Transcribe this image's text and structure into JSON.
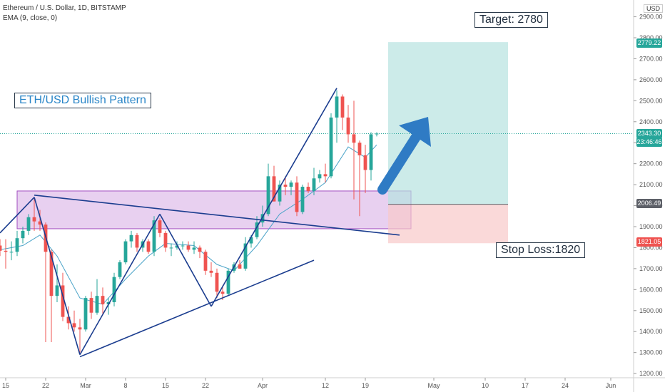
{
  "header": {
    "symbol": "Ethereum / U.S. Dollar, 1D, BITSTAMP",
    "indicator": "EMA (9, close, 0)"
  },
  "axis": {
    "currency": "USD"
  },
  "annotations": {
    "pattern_label": "ETH/USD Bullish Pattern",
    "target_label": "Target: 2780",
    "stop_label": "Stop Loss:1820"
  },
  "price_tags": {
    "target": {
      "value": "2779.22",
      "color": "#26a69a"
    },
    "current": {
      "value": "2343.30",
      "sub": "23:46:46",
      "color": "#26a69a"
    },
    "entry": {
      "value": "2006.49",
      "color": "#5d6068"
    },
    "stop": {
      "value": "1821.05",
      "color": "#ef5350"
    }
  },
  "colors": {
    "up": "#26a69a",
    "down": "#ef5350",
    "ema": "#4aa3c8",
    "trend": "#1b3d8f",
    "zone": "#d8b0e6",
    "target_zone": "#b7e3df",
    "stop_zone": "#f8c9c9",
    "arrow": "#2f7bc4"
  },
  "chart_data": {
    "type": "candlestick",
    "ylim": [
      1180,
      2980
    ],
    "y_ticks": [
      1200,
      1300,
      1400,
      1500,
      1600,
      1700,
      1800,
      1900,
      2000,
      2100,
      2200,
      2300,
      2400,
      2500,
      2600,
      2700,
      2800,
      2900
    ],
    "y_tick_labels": [
      "1200.00",
      "1300.00",
      "1400.00",
      "1500.00",
      "1600.00",
      "1700.00",
      "1800.00",
      "1900.00",
      "2000.00",
      "2100.00",
      "2200.00",
      "2300.00",
      "2400.00",
      "2500.00",
      "2600.00",
      "2700.00",
      "2800.00",
      "2900.00"
    ],
    "x_start": "2021-02-14",
    "x_end": "2021-06-05",
    "x_ticks": [
      {
        "date": "2021-02-15",
        "label": "15"
      },
      {
        "date": "2021-02-22",
        "label": "22"
      },
      {
        "date": "2021-03-01",
        "label": "Mar"
      },
      {
        "date": "2021-03-08",
        "label": "8"
      },
      {
        "date": "2021-03-15",
        "label": "15"
      },
      {
        "date": "2021-03-22",
        "label": "22"
      },
      {
        "date": "2021-04-01",
        "label": "Apr"
      },
      {
        "date": "2021-04-12",
        "label": "12"
      },
      {
        "date": "2021-04-19",
        "label": "19"
      },
      {
        "date": "2021-05-01",
        "label": "May"
      },
      {
        "date": "2021-05-10",
        "label": "10"
      },
      {
        "date": "2021-05-17",
        "label": "17"
      },
      {
        "date": "2021-05-24",
        "label": "24"
      },
      {
        "date": "2021-06-01",
        "label": "Jun"
      }
    ],
    "candles": [
      {
        "d": "2021-02-14",
        "o": 1810,
        "h": 1840,
        "l": 1760,
        "c": 1785
      },
      {
        "d": "2021-02-15",
        "o": 1785,
        "h": 1840,
        "l": 1700,
        "c": 1780
      },
      {
        "d": "2021-02-16",
        "o": 1780,
        "h": 1830,
        "l": 1740,
        "c": 1780
      },
      {
        "d": "2021-02-17",
        "o": 1780,
        "h": 1880,
        "l": 1760,
        "c": 1845
      },
      {
        "d": "2021-02-18",
        "o": 1845,
        "h": 1900,
        "l": 1820,
        "c": 1880
      },
      {
        "d": "2021-02-19",
        "o": 1880,
        "h": 1960,
        "l": 1860,
        "c": 1945
      },
      {
        "d": "2021-02-20",
        "o": 1945,
        "h": 2040,
        "l": 1880,
        "c": 1925
      },
      {
        "d": "2021-02-21",
        "o": 1925,
        "h": 1980,
        "l": 1880,
        "c": 1910
      },
      {
        "d": "2021-02-22",
        "o": 1910,
        "h": 1920,
        "l": 1350,
        "c": 1780
      },
      {
        "d": "2021-02-23",
        "o": 1780,
        "h": 1790,
        "l": 1350,
        "c": 1570
      },
      {
        "d": "2021-02-24",
        "o": 1570,
        "h": 1720,
        "l": 1540,
        "c": 1620
      },
      {
        "d": "2021-02-25",
        "o": 1620,
        "h": 1680,
        "l": 1450,
        "c": 1470
      },
      {
        "d": "2021-02-26",
        "o": 1470,
        "h": 1520,
        "l": 1410,
        "c": 1440
      },
      {
        "d": "2021-02-27",
        "o": 1440,
        "h": 1500,
        "l": 1400,
        "c": 1420
      },
      {
        "d": "2021-02-28",
        "o": 1420,
        "h": 1460,
        "l": 1300,
        "c": 1410
      },
      {
        "d": "2021-03-01",
        "o": 1410,
        "h": 1570,
        "l": 1400,
        "c": 1560
      },
      {
        "d": "2021-03-02",
        "o": 1560,
        "h": 1590,
        "l": 1460,
        "c": 1490
      },
      {
        "d": "2021-03-03",
        "o": 1490,
        "h": 1650,
        "l": 1480,
        "c": 1570
      },
      {
        "d": "2021-03-04",
        "o": 1570,
        "h": 1610,
        "l": 1480,
        "c": 1530
      },
      {
        "d": "2021-03-05",
        "o": 1530,
        "h": 1560,
        "l": 1480,
        "c": 1540
      },
      {
        "d": "2021-03-06",
        "o": 1540,
        "h": 1680,
        "l": 1520,
        "c": 1660
      },
      {
        "d": "2021-03-07",
        "o": 1660,
        "h": 1740,
        "l": 1650,
        "c": 1730
      },
      {
        "d": "2021-03-08",
        "o": 1730,
        "h": 1840,
        "l": 1720,
        "c": 1830
      },
      {
        "d": "2021-03-09",
        "o": 1830,
        "h": 1880,
        "l": 1800,
        "c": 1860
      },
      {
        "d": "2021-03-10",
        "o": 1860,
        "h": 1870,
        "l": 1780,
        "c": 1800
      },
      {
        "d": "2021-03-11",
        "o": 1800,
        "h": 1840,
        "l": 1780,
        "c": 1830
      },
      {
        "d": "2021-03-12",
        "o": 1830,
        "h": 1840,
        "l": 1770,
        "c": 1780
      },
      {
        "d": "2021-03-13",
        "o": 1780,
        "h": 1950,
        "l": 1760,
        "c": 1930
      },
      {
        "d": "2021-03-14",
        "o": 1930,
        "h": 1940,
        "l": 1850,
        "c": 1870
      },
      {
        "d": "2021-03-15",
        "o": 1870,
        "h": 1880,
        "l": 1780,
        "c": 1800
      },
      {
        "d": "2021-03-16",
        "o": 1800,
        "h": 1820,
        "l": 1760,
        "c": 1800
      },
      {
        "d": "2021-03-17",
        "o": 1800,
        "h": 1830,
        "l": 1790,
        "c": 1810
      },
      {
        "d": "2021-03-18",
        "o": 1810,
        "h": 1830,
        "l": 1790,
        "c": 1810
      },
      {
        "d": "2021-03-19",
        "o": 1810,
        "h": 1830,
        "l": 1780,
        "c": 1790
      },
      {
        "d": "2021-03-20",
        "o": 1790,
        "h": 1830,
        "l": 1770,
        "c": 1800
      },
      {
        "d": "2021-03-21",
        "o": 1800,
        "h": 1810,
        "l": 1750,
        "c": 1780
      },
      {
        "d": "2021-03-22",
        "o": 1780,
        "h": 1790,
        "l": 1670,
        "c": 1690
      },
      {
        "d": "2021-03-23",
        "o": 1690,
        "h": 1730,
        "l": 1660,
        "c": 1680
      },
      {
        "d": "2021-03-24",
        "o": 1680,
        "h": 1700,
        "l": 1560,
        "c": 1590
      },
      {
        "d": "2021-03-25",
        "o": 1590,
        "h": 1620,
        "l": 1550,
        "c": 1580
      },
      {
        "d": "2021-03-26",
        "o": 1580,
        "h": 1700,
        "l": 1570,
        "c": 1690
      },
      {
        "d": "2021-03-27",
        "o": 1690,
        "h": 1730,
        "l": 1680,
        "c": 1720
      },
      {
        "d": "2021-03-28",
        "o": 1720,
        "h": 1740,
        "l": 1700,
        "c": 1700
      },
      {
        "d": "2021-03-29",
        "o": 1700,
        "h": 1850,
        "l": 1690,
        "c": 1820
      },
      {
        "d": "2021-03-30",
        "o": 1820,
        "h": 1860,
        "l": 1800,
        "c": 1850
      },
      {
        "d": "2021-03-31",
        "o": 1850,
        "h": 1950,
        "l": 1840,
        "c": 1920
      },
      {
        "d": "2021-04-01",
        "o": 1920,
        "h": 2000,
        "l": 1900,
        "c": 1960
      },
      {
        "d": "2021-04-02",
        "o": 1960,
        "h": 2200,
        "l": 1950,
        "c": 2140
      },
      {
        "d": "2021-04-03",
        "o": 2140,
        "h": 2190,
        "l": 2020,
        "c": 2020
      },
      {
        "d": "2021-04-04",
        "o": 2020,
        "h": 2120,
        "l": 2000,
        "c": 2100
      },
      {
        "d": "2021-04-05",
        "o": 2100,
        "h": 2140,
        "l": 2050,
        "c": 2090
      },
      {
        "d": "2021-04-06",
        "o": 2090,
        "h": 2120,
        "l": 2050,
        "c": 2110
      },
      {
        "d": "2021-04-07",
        "o": 2110,
        "h": 2140,
        "l": 1950,
        "c": 1970
      },
      {
        "d": "2021-04-08",
        "o": 1970,
        "h": 2100,
        "l": 1960,
        "c": 2090
      },
      {
        "d": "2021-04-09",
        "o": 2090,
        "h": 2110,
        "l": 2060,
        "c": 2070
      },
      {
        "d": "2021-04-10",
        "o": 2070,
        "h": 2180,
        "l": 2050,
        "c": 2130
      },
      {
        "d": "2021-04-11",
        "o": 2130,
        "h": 2170,
        "l": 2110,
        "c": 2150
      },
      {
        "d": "2021-04-12",
        "o": 2150,
        "h": 2200,
        "l": 2110,
        "c": 2140
      },
      {
        "d": "2021-04-13",
        "o": 2140,
        "h": 2440,
        "l": 2130,
        "c": 2420
      },
      {
        "d": "2021-04-14",
        "o": 2420,
        "h": 2550,
        "l": 2300,
        "c": 2520
      },
      {
        "d": "2021-04-15",
        "o": 2520,
        "h": 2530,
        "l": 2360,
        "c": 2420
      },
      {
        "d": "2021-04-16",
        "o": 2420,
        "h": 2480,
        "l": 2300,
        "c": 2340
      },
      {
        "d": "2021-04-17",
        "o": 2340,
        "h": 2500,
        "l": 2030,
        "c": 2300
      },
      {
        "d": "2021-04-18",
        "o": 2300,
        "h": 2310,
        "l": 1950,
        "c": 2240
      },
      {
        "d": "2021-04-19",
        "o": 2240,
        "h": 2290,
        "l": 2060,
        "c": 2170
      },
      {
        "d": "2021-04-20",
        "o": 2170,
        "h": 2350,
        "l": 2120,
        "c": 2340
      },
      {
        "d": "2021-04-21",
        "o": 2340,
        "h": 2350,
        "l": 2330,
        "c": 2343.3
      }
    ],
    "ema": {
      "name": "EMA (9, close, 0)",
      "points": [
        {
          "d": "2021-02-14",
          "v": 1790
        },
        {
          "d": "2021-02-18",
          "v": 1810
        },
        {
          "d": "2021-02-21",
          "v": 1860
        },
        {
          "d": "2021-02-24",
          "v": 1760
        },
        {
          "d": "2021-02-28",
          "v": 1560
        },
        {
          "d": "2021-03-04",
          "v": 1530
        },
        {
          "d": "2021-03-08",
          "v": 1650
        },
        {
          "d": "2021-03-12",
          "v": 1760
        },
        {
          "d": "2021-03-15",
          "v": 1820
        },
        {
          "d": "2021-03-20",
          "v": 1810
        },
        {
          "d": "2021-03-24",
          "v": 1720
        },
        {
          "d": "2021-03-27",
          "v": 1690
        },
        {
          "d": "2021-03-31",
          "v": 1810
        },
        {
          "d": "2021-04-04",
          "v": 1960
        },
        {
          "d": "2021-04-08",
          "v": 2030
        },
        {
          "d": "2021-04-12",
          "v": 2110
        },
        {
          "d": "2021-04-16",
          "v": 2280
        },
        {
          "d": "2021-04-19",
          "v": 2230
        },
        {
          "d": "2021-04-21",
          "v": 2290
        }
      ]
    },
    "zones": [
      {
        "name": "resistance-zone",
        "x0": "2021-02-17",
        "x1": "2021-04-27",
        "y0": 1890,
        "y1": 2070
      },
      {
        "name": "target-zone",
        "x0": "2021-04-23",
        "x1": "2021-05-14",
        "y0": 2006.49,
        "y1": 2779.22
      },
      {
        "name": "stop-zone",
        "x0": "2021-04-23",
        "x1": "2021-05-14",
        "y0": 1821.05,
        "y1": 2006.49
      }
    ],
    "trendlines": [
      {
        "name": "rise-line-1",
        "p": [
          [
            "2021-02-14",
            "1870"
          ],
          [
            "2021-02-20",
            "2040"
          ]
        ]
      },
      {
        "name": "w-1",
        "p": [
          [
            "2021-02-20",
            "2040"
          ],
          [
            "2021-02-28",
            "1290"
          ]
        ]
      },
      {
        "name": "w-2",
        "p": [
          [
            "2021-02-28",
            "1290"
          ],
          [
            "2021-03-14",
            "1960"
          ]
        ]
      },
      {
        "name": "w-3",
        "p": [
          [
            "2021-03-14",
            "1960"
          ],
          [
            "2021-03-23",
            "1520"
          ]
        ]
      },
      {
        "name": "w-4",
        "p": [
          [
            "2021-03-23",
            "1520"
          ],
          [
            "2021-04-14",
            "2560"
          ]
        ]
      },
      {
        "name": "upper-trendline",
        "p": [
          [
            "2021-02-20",
            "2050"
          ],
          [
            "2021-04-25",
            "1860"
          ]
        ]
      },
      {
        "name": "lower-trendline",
        "p": [
          [
            "2021-02-28",
            "1280"
          ],
          [
            "2021-04-10",
            "1740"
          ]
        ]
      }
    ]
  }
}
